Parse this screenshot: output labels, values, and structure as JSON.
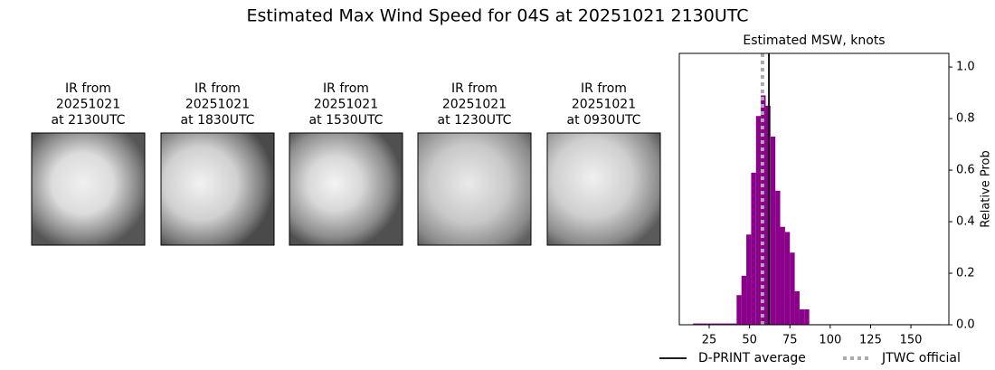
{
  "title": "Estimated Max Wind Speed for 04S at 20251021 2130UTC",
  "panels": [
    {
      "lines": [
        "IR from",
        "20251021",
        "at 2130UTC"
      ]
    },
    {
      "lines": [
        "IR from",
        "20251021",
        "at 1830UTC"
      ]
    },
    {
      "lines": [
        "IR from",
        "20251021",
        "at 1530UTC"
      ]
    },
    {
      "lines": [
        "IR from",
        "20251021",
        "at 1230UTC"
      ]
    },
    {
      "lines": [
        "IR from",
        "20251021",
        "at 0930UTC"
      ]
    }
  ],
  "chart_data": {
    "type": "histogram",
    "title": "Estimated MSW, knots",
    "ylabel": "Relative Prob",
    "bins": [
      15,
      18,
      21,
      24,
      27,
      30,
      33,
      36,
      39,
      42,
      45,
      48,
      51,
      54,
      57,
      60,
      63,
      66,
      69,
      72,
      75,
      78,
      81,
      84,
      87,
      90,
      93,
      96,
      99,
      102,
      105,
      108,
      111,
      114,
      117,
      120,
      123,
      126,
      129,
      132,
      135,
      138,
      141,
      144,
      147,
      150,
      153,
      156,
      159,
      162,
      165,
      168
    ],
    "values": [
      0.005,
      0.005,
      0.005,
      0.005,
      0.005,
      0.005,
      0.005,
      0.005,
      0.005,
      0.115,
      0.19,
      0.35,
      0.59,
      0.81,
      0.89,
      0.85,
      0.73,
      0.52,
      0.38,
      0.36,
      0.28,
      0.13,
      0.06,
      0.06,
      0.002,
      0.002,
      0.002,
      0.002,
      0.002,
      0.002,
      0.002,
      0.002,
      0.002,
      0.002,
      0.002,
      0.002,
      0.002,
      0.002,
      0.002,
      0.002,
      0.002,
      0.002,
      0.002,
      0.002,
      0.002,
      0.002,
      0.002,
      0.002,
      0.002,
      0.002,
      0.002
    ],
    "color": "#8b008b",
    "xlim": [
      6.5,
      173.5
    ],
    "ylim": [
      0,
      1.053
    ],
    "xticks": [
      25,
      50,
      75,
      100,
      125,
      150
    ],
    "yticks": [
      {
        "value": 0,
        "label": "0.0"
      },
      0.2,
      0.4,
      0.6,
      0.8,
      {
        "value": 1,
        "label": "1.0"
      }
    ],
    "lines": [
      {
        "name": "D-PRINT average",
        "value": 62,
        "color": "#000000",
        "style": "solid"
      },
      {
        "name": "JTWC official",
        "value": 58,
        "color": "#aaaaaa",
        "style": "dotted"
      }
    ]
  }
}
